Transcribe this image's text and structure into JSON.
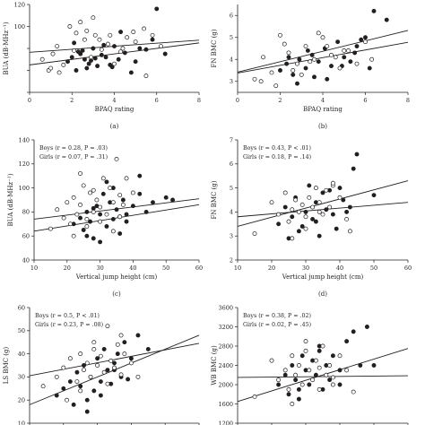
{
  "chart_data": [
    {
      "panel": "(a)",
      "type": "scatter",
      "xlabel": "BPAQ rating",
      "ylabel": "BUA (dB·MHz⁻¹)",
      "xlim": [
        0,
        8
      ],
      "ylim": [
        40,
        120
      ],
      "xticks": [
        0,
        2,
        4,
        6,
        8
      ],
      "yticks": [
        40,
        60,
        80,
        100,
        120
      ],
      "yticks_labeled": [
        100,
        120
      ],
      "series": [
        {
          "marker": "filled",
          "x": [
            1.8,
            2.0,
            2.2,
            2.4,
            2.6,
            2.8,
            3.0,
            3.2,
            2.5,
            2.9,
            3.4,
            3.6,
            3.8,
            4.0,
            4.2,
            4.5,
            5.0,
            5.5,
            6.0,
            2.1,
            2.7,
            3.1,
            4.3,
            5.2,
            6.4,
            4.8,
            3.5,
            2.3,
            3.9,
            5.8
          ],
          "y": [
            68,
            72,
            60,
            75,
            70,
            66,
            80,
            64,
            78,
            69,
            74,
            72,
            65,
            82,
            70,
            76,
            68,
            79,
            116,
            85,
            62,
            71,
            95,
            80,
            75,
            58,
            83,
            77,
            63,
            88
          ]
        },
        {
          "marker": "open",
          "x": [
            0.6,
            0.9,
            1.1,
            1.3,
            1.6,
            1.9,
            2.1,
            2.4,
            2.6,
            2.9,
            3.1,
            3.4,
            3.7,
            4.0,
            4.3,
            4.6,
            5.0,
            5.4,
            5.8,
            6.2,
            1.4,
            2.2,
            3.3,
            3.0,
            4.9,
            5.5,
            1.0,
            2.7,
            3.8,
            4.4
          ],
          "y": [
            70,
            60,
            75,
            82,
            65,
            100,
            78,
            104,
            88,
            72,
            92,
            79,
            84,
            66,
            77,
            90,
            86,
            98,
            92,
            82,
            58,
            94,
            88,
            108,
            95,
            55,
            62,
            96,
            92,
            80
          ]
        }
      ],
      "lines": [
        {
          "x": [
            0,
            8
          ],
          "y": [
            76.5,
            87.5
          ]
        },
        {
          "x": [
            0,
            8
          ],
          "y": [
            65,
            85
          ]
        }
      ]
    },
    {
      "panel": "(b)",
      "type": "scatter",
      "xlabel": "BPAQ rating",
      "ylabel": "FN BMC (g)",
      "xlim": [
        0,
        8
      ],
      "ylim": [
        2.5,
        6.5
      ],
      "xticks": [
        0,
        2,
        4,
        6,
        8
      ],
      "yticks": [
        3,
        4,
        5,
        6
      ],
      "series": [
        {
          "marker": "filled",
          "x": [
            2.0,
            2.3,
            2.6,
            2.9,
            3.2,
            3.5,
            3.8,
            4.1,
            4.4,
            4.7,
            5.0,
            5.3,
            5.6,
            6.0,
            6.4,
            7.0,
            2.8,
            3.6,
            4.9,
            5.8,
            3.3,
            4.2,
            5.5,
            6.2,
            2.4
          ],
          "y": [
            3.5,
            3.8,
            3.3,
            4.0,
            3.6,
            4.2,
            3.9,
            4.5,
            3.7,
            4.8,
            4.1,
            3.9,
            4.6,
            5.0,
            6.2,
            5.8,
            2.9,
            3.2,
            3.7,
            4.9,
            4.4,
            3.1,
            4.3,
            3.6,
            4.1
          ]
        },
        {
          "marker": "open",
          "x": [
            0.8,
            1.2,
            1.6,
            2.0,
            2.4,
            2.8,
            3.2,
            3.6,
            4.0,
            4.4,
            4.8,
            5.2,
            5.6,
            6.0,
            2.2,
            3.0,
            3.8,
            4.6,
            1.8,
            2.6,
            3.4,
            4.2,
            5.0,
            6.3,
            1.1
          ],
          "y": [
            3.1,
            4.1,
            3.4,
            5.1,
            4.3,
            3.8,
            4.6,
            4.0,
            5.0,
            4.2,
            3.6,
            4.4,
            3.8,
            4.8,
            4.7,
            3.3,
            5.2,
            4.1,
            2.8,
            3.5,
            3.9,
            4.6,
            4.4,
            4.0,
            3.0
          ]
        }
      ],
      "lines": [
        {
          "x": [
            0,
            8
          ],
          "y": [
            3.42,
            5.32
          ]
        },
        {
          "x": [
            0,
            8
          ],
          "y": [
            3.38,
            4.78
          ]
        }
      ]
    },
    {
      "panel": "(c)",
      "type": "scatter",
      "xlabel": "Vertical jump height (cm)",
      "ylabel": "BUA (dB·MHz⁻¹)",
      "xlim": [
        10,
        60
      ],
      "ylim": [
        40,
        140
      ],
      "xticks": [
        10,
        20,
        30,
        40,
        50,
        60
      ],
      "yticks": [
        40,
        60,
        80,
        100,
        120,
        140
      ],
      "annotation": [
        "Boys (r = 0.28, P = .03)",
        "Girls (r = 0.07, P = .31)"
      ],
      "series": [
        {
          "marker": "filled",
          "x": [
            22,
            24,
            25,
            26,
            27,
            28,
            29,
            30,
            31,
            32,
            33,
            34,
            35,
            36,
            37,
            38,
            40,
            42,
            44,
            46,
            50,
            52,
            26,
            30,
            34,
            38,
            42,
            28,
            32,
            36
          ],
          "y": [
            70,
            75,
            65,
            80,
            72,
            58,
            85,
            78,
            95,
            68,
            88,
            74,
            82,
            62,
            90,
            78,
            85,
            110,
            80,
            88,
            92,
            90,
            60,
            55,
            100,
            72,
            95,
            83,
            105,
            76
          ]
        },
        {
          "marker": "open",
          "x": [
            15,
            17,
            19,
            20,
            21,
            22,
            23,
            24,
            25,
            26,
            27,
            28,
            29,
            30,
            31,
            32,
            33,
            34,
            35,
            36,
            37,
            38,
            40,
            22,
            26,
            30,
            34,
            24,
            28,
            36
          ],
          "y": [
            66,
            82,
            75,
            88,
            70,
            92,
            78,
            86,
            102,
            74,
            96,
            80,
            90,
            84,
            108,
            78,
            100,
            88,
            124,
            94,
            86,
            108,
            96,
            60,
            68,
            72,
            64,
            112,
            98,
            76
          ]
        }
      ],
      "lines": [
        {
          "x": [
            10,
            60
          ],
          "y": [
            74,
            91
          ]
        },
        {
          "x": [
            10,
            60
          ],
          "y": [
            64,
            86
          ]
        }
      ]
    },
    {
      "panel": "(d)",
      "type": "scatter",
      "xlabel": "Vertical jump height (cm)",
      "ylabel": "FN BMC (g)",
      "xlim": [
        10,
        60
      ],
      "ylim": [
        2,
        7
      ],
      "xticks": [
        10,
        20,
        30,
        40,
        50,
        60
      ],
      "yticks": [
        2,
        3,
        4,
        5,
        6,
        7
      ],
      "annotation": [
        "Boys (r = 0.43, P < .01)",
        "Girls (r = 0.18, P = .14)"
      ],
      "series": [
        {
          "marker": "filled",
          "x": [
            22,
            24,
            26,
            27,
            28,
            30,
            31,
            32,
            33,
            34,
            35,
            36,
            38,
            40,
            41,
            42,
            44,
            45,
            50,
            29,
            33,
            37,
            25,
            39,
            43
          ],
          "y": [
            3.5,
            4.2,
            3.8,
            4.6,
            3.2,
            4.0,
            5.1,
            3.7,
            4.4,
            3.0,
            4.8,
            4.1,
            3.9,
            5.0,
            4.5,
            4.0,
            5.8,
            6.4,
            4.7,
            3.4,
            3.6,
            4.9,
            2.9,
            3.3,
            4.2
          ]
        },
        {
          "marker": "open",
          "x": [
            15,
            20,
            22,
            24,
            25,
            26,
            27,
            28,
            29,
            30,
            31,
            32,
            33,
            34,
            35,
            36,
            37,
            38,
            40,
            42,
            43,
            26,
            30,
            34,
            38
          ],
          "y": [
            3.1,
            4.4,
            3.9,
            4.8,
            3.6,
            4.1,
            4.5,
            4.0,
            4.3,
            3.8,
            4.6,
            4.2,
            5.0,
            4.4,
            3.9,
            4.9,
            4.2,
            5.1,
            4.6,
            3.7,
            3.2,
            2.9,
            3.3,
            4.0,
            5.2
          ]
        }
      ],
      "lines": [
        {
          "x": [
            10,
            60
          ],
          "y": [
            3.4,
            5.3
          ]
        },
        {
          "x": [
            10,
            60
          ],
          "y": [
            3.8,
            4.4
          ]
        }
      ]
    },
    {
      "panel": "",
      "type": "scatter",
      "xlabel": "",
      "ylabel": "LS BMC (g)",
      "xlim": [
        10,
        60
      ],
      "ylim": [
        10,
        60
      ],
      "xticks": [
        10,
        20,
        30,
        40,
        50,
        60
      ],
      "yticks": [
        10,
        20,
        30,
        40,
        50,
        60
      ],
      "annotation": [
        "Boys (r = 0.5, P < .01)",
        "Girls (r = 0.23, P = .08)"
      ],
      "series": [
        {
          "marker": "filled",
          "x": [
            18,
            20,
            22,
            23,
            24,
            25,
            26,
            27,
            28,
            29,
            30,
            31,
            32,
            33,
            34,
            35,
            36,
            37,
            38,
            40,
            42,
            45,
            27,
            31,
            35,
            39
          ],
          "y": [
            22,
            25,
            28,
            18,
            32,
            26,
            35,
            20,
            30,
            24,
            38,
            28,
            42,
            33,
            27,
            36,
            40,
            30,
            45,
            38,
            48,
            42,
            15,
            22,
            33,
            29
          ]
        },
        {
          "marker": "open",
          "x": [
            14,
            18,
            20,
            22,
            24,
            25,
            26,
            27,
            28,
            29,
            30,
            31,
            32,
            33,
            34,
            35,
            36,
            37,
            38,
            40,
            42,
            21,
            25,
            29,
            33,
            37
          ],
          "y": [
            26,
            30,
            34,
            38,
            28,
            40,
            33,
            36,
            30,
            42,
            35,
            39,
            32,
            52,
            37,
            34,
            44,
            31,
            40,
            36,
            30,
            20,
            24,
            45,
            27,
            48
          ]
        }
      ],
      "lines": [
        {
          "x": [
            10,
            60
          ],
          "y": [
            18,
            48
          ]
        },
        {
          "x": [
            10,
            60
          ],
          "y": [
            30.5,
            44.5
          ]
        }
      ]
    },
    {
      "panel": "",
      "type": "scatter",
      "xlabel": "",
      "ylabel": "WB BMC (g)",
      "xlim": [
        10,
        60
      ],
      "ylim": [
        1200,
        3600
      ],
      "xticks": [
        10,
        20,
        30,
        40,
        50,
        60
      ],
      "yticks": [
        1200,
        1600,
        2000,
        2400,
        2800,
        3200,
        3600
      ],
      "annotation": [
        "Boys (r = 0.38, P = .02)",
        "Girls (r = 0.02, P = .45)"
      ],
      "series": [
        {
          "marker": "filled",
          "x": [
            22,
            24,
            25,
            26,
            27,
            28,
            29,
            30,
            31,
            32,
            33,
            34,
            35,
            36,
            37,
            38,
            40,
            42,
            44,
            46,
            48,
            50,
            28,
            34,
            40
          ],
          "y": [
            2000,
            2200,
            1800,
            2400,
            2100,
            1900,
            2600,
            2300,
            2000,
            2500,
            2200,
            2700,
            1900,
            2400,
            2100,
            2600,
            2300,
            2900,
            3100,
            2400,
            3200,
            2400,
            1700,
            2800,
            2000
          ]
        },
        {
          "marker": "open",
          "x": [
            15,
            20,
            22,
            24,
            25,
            26,
            27,
            28,
            29,
            30,
            31,
            32,
            33,
            34,
            35,
            36,
            37,
            38,
            40,
            42,
            44,
            26,
            30,
            34,
            38
          ],
          "y": [
            1750,
            2500,
            2100,
            2300,
            1900,
            2600,
            2200,
            2400,
            2000,
            2700,
            2300,
            2100,
            2500,
            1900,
            2800,
            2200,
            2400,
            2000,
            2600,
            2300,
            1850,
            1600,
            2900,
            2350,
            2150
          ]
        }
      ],
      "lines": [
        {
          "x": [
            10,
            60
          ],
          "y": [
            1650,
            2750
          ]
        },
        {
          "x": [
            10,
            60
          ],
          "y": [
            2150,
            2185
          ]
        }
      ]
    }
  ]
}
